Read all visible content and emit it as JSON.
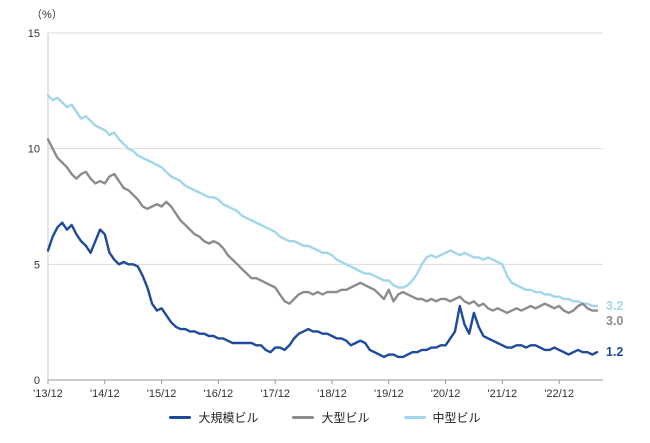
{
  "chart_data": {
    "type": "line",
    "title": "",
    "ylabel_unit": "（%）",
    "ylim": [
      0,
      15
    ],
    "yticks": [
      0,
      5,
      10,
      15
    ],
    "grid": "horizontal",
    "legend_position": "bottom-center",
    "x_tick_labels": [
      "'13/12",
      "'14/12",
      "'15/12",
      "'16/12",
      "'17/12",
      "'18/12",
      "'19/12",
      "'20/12",
      "'21/12",
      "'22/12"
    ],
    "x_tick_positions": [
      0,
      12,
      24,
      36,
      48,
      60,
      72,
      84,
      96,
      108
    ],
    "series": [
      {
        "name": "大規模ビル",
        "color": "#1d4a9c",
        "end_label": "1.2",
        "values": [
          5.6,
          6.2,
          6.6,
          6.8,
          6.5,
          6.7,
          6.3,
          6.0,
          5.8,
          5.5,
          6.0,
          6.5,
          6.3,
          5.5,
          5.2,
          5.0,
          5.1,
          5.0,
          5.0,
          4.9,
          4.5,
          4.0,
          3.3,
          3.0,
          3.1,
          2.8,
          2.5,
          2.3,
          2.2,
          2.2,
          2.1,
          2.1,
          2.0,
          2.0,
          1.9,
          1.9,
          1.8,
          1.8,
          1.7,
          1.6,
          1.6,
          1.6,
          1.6,
          1.6,
          1.5,
          1.5,
          1.3,
          1.2,
          1.4,
          1.4,
          1.3,
          1.5,
          1.8,
          2.0,
          2.1,
          2.2,
          2.1,
          2.1,
          2.0,
          2.0,
          1.9,
          1.8,
          1.8,
          1.7,
          1.5,
          1.6,
          1.7,
          1.6,
          1.3,
          1.2,
          1.1,
          1.0,
          1.1,
          1.1,
          1.0,
          1.0,
          1.1,
          1.2,
          1.2,
          1.3,
          1.3,
          1.4,
          1.4,
          1.5,
          1.5,
          1.8,
          2.1,
          3.2,
          2.4,
          2.0,
          2.9,
          2.3,
          1.9,
          1.8,
          1.7,
          1.6,
          1.5,
          1.4,
          1.4,
          1.5,
          1.5,
          1.4,
          1.5,
          1.5,
          1.4,
          1.3,
          1.3,
          1.4,
          1.3,
          1.2,
          1.1,
          1.2,
          1.3,
          1.2,
          1.2,
          1.1,
          1.2
        ]
      },
      {
        "name": "大型ビル",
        "color": "#8c8c8c",
        "end_label": "3.0",
        "values": [
          10.4,
          10.0,
          9.6,
          9.4,
          9.2,
          8.9,
          8.7,
          8.9,
          9.0,
          8.7,
          8.5,
          8.6,
          8.5,
          8.8,
          8.9,
          8.6,
          8.3,
          8.2,
          8.0,
          7.8,
          7.5,
          7.4,
          7.5,
          7.6,
          7.5,
          7.7,
          7.5,
          7.2,
          6.9,
          6.7,
          6.5,
          6.3,
          6.2,
          6.0,
          5.9,
          6.0,
          5.9,
          5.7,
          5.4,
          5.2,
          5.0,
          4.8,
          4.6,
          4.4,
          4.4,
          4.3,
          4.2,
          4.1,
          4.0,
          3.7,
          3.4,
          3.3,
          3.5,
          3.7,
          3.8,
          3.8,
          3.7,
          3.8,
          3.7,
          3.8,
          3.8,
          3.8,
          3.9,
          3.9,
          4.0,
          4.1,
          4.2,
          4.1,
          4.0,
          3.9,
          3.7,
          3.5,
          3.9,
          3.4,
          3.7,
          3.8,
          3.7,
          3.6,
          3.5,
          3.5,
          3.4,
          3.5,
          3.4,
          3.5,
          3.5,
          3.4,
          3.5,
          3.6,
          3.4,
          3.3,
          3.4,
          3.2,
          3.3,
          3.1,
          3.0,
          3.1,
          3.0,
          2.9,
          3.0,
          3.1,
          3.0,
          3.1,
          3.2,
          3.1,
          3.2,
          3.3,
          3.2,
          3.1,
          3.2,
          3.0,
          2.9,
          3.0,
          3.2,
          3.3,
          3.1,
          3.0,
          3.0
        ]
      },
      {
        "name": "中型ビル",
        "color": "#a2d6ea",
        "end_label": "3.2",
        "values": [
          12.3,
          12.1,
          12.2,
          12.0,
          11.8,
          11.9,
          11.6,
          11.3,
          11.4,
          11.2,
          11.0,
          10.9,
          10.8,
          10.6,
          10.7,
          10.4,
          10.2,
          10.0,
          9.9,
          9.7,
          9.6,
          9.5,
          9.4,
          9.3,
          9.2,
          9.0,
          8.8,
          8.7,
          8.6,
          8.4,
          8.3,
          8.2,
          8.1,
          8.0,
          7.9,
          7.9,
          7.8,
          7.6,
          7.5,
          7.4,
          7.3,
          7.1,
          7.0,
          6.9,
          6.8,
          6.7,
          6.6,
          6.5,
          6.4,
          6.2,
          6.1,
          6.0,
          6.0,
          5.9,
          5.8,
          5.8,
          5.7,
          5.6,
          5.5,
          5.5,
          5.4,
          5.2,
          5.1,
          5.0,
          4.9,
          4.8,
          4.7,
          4.6,
          4.6,
          4.5,
          4.4,
          4.3,
          4.3,
          4.1,
          4.0,
          4.0,
          4.1,
          4.3,
          4.6,
          5.0,
          5.3,
          5.4,
          5.3,
          5.4,
          5.5,
          5.6,
          5.5,
          5.4,
          5.5,
          5.4,
          5.3,
          5.3,
          5.2,
          5.3,
          5.2,
          5.1,
          5.0,
          4.5,
          4.2,
          4.1,
          4.0,
          3.9,
          3.9,
          3.8,
          3.8,
          3.7,
          3.7,
          3.6,
          3.6,
          3.5,
          3.5,
          3.4,
          3.4,
          3.3,
          3.3,
          3.2,
          3.2
        ]
      }
    ]
  }
}
